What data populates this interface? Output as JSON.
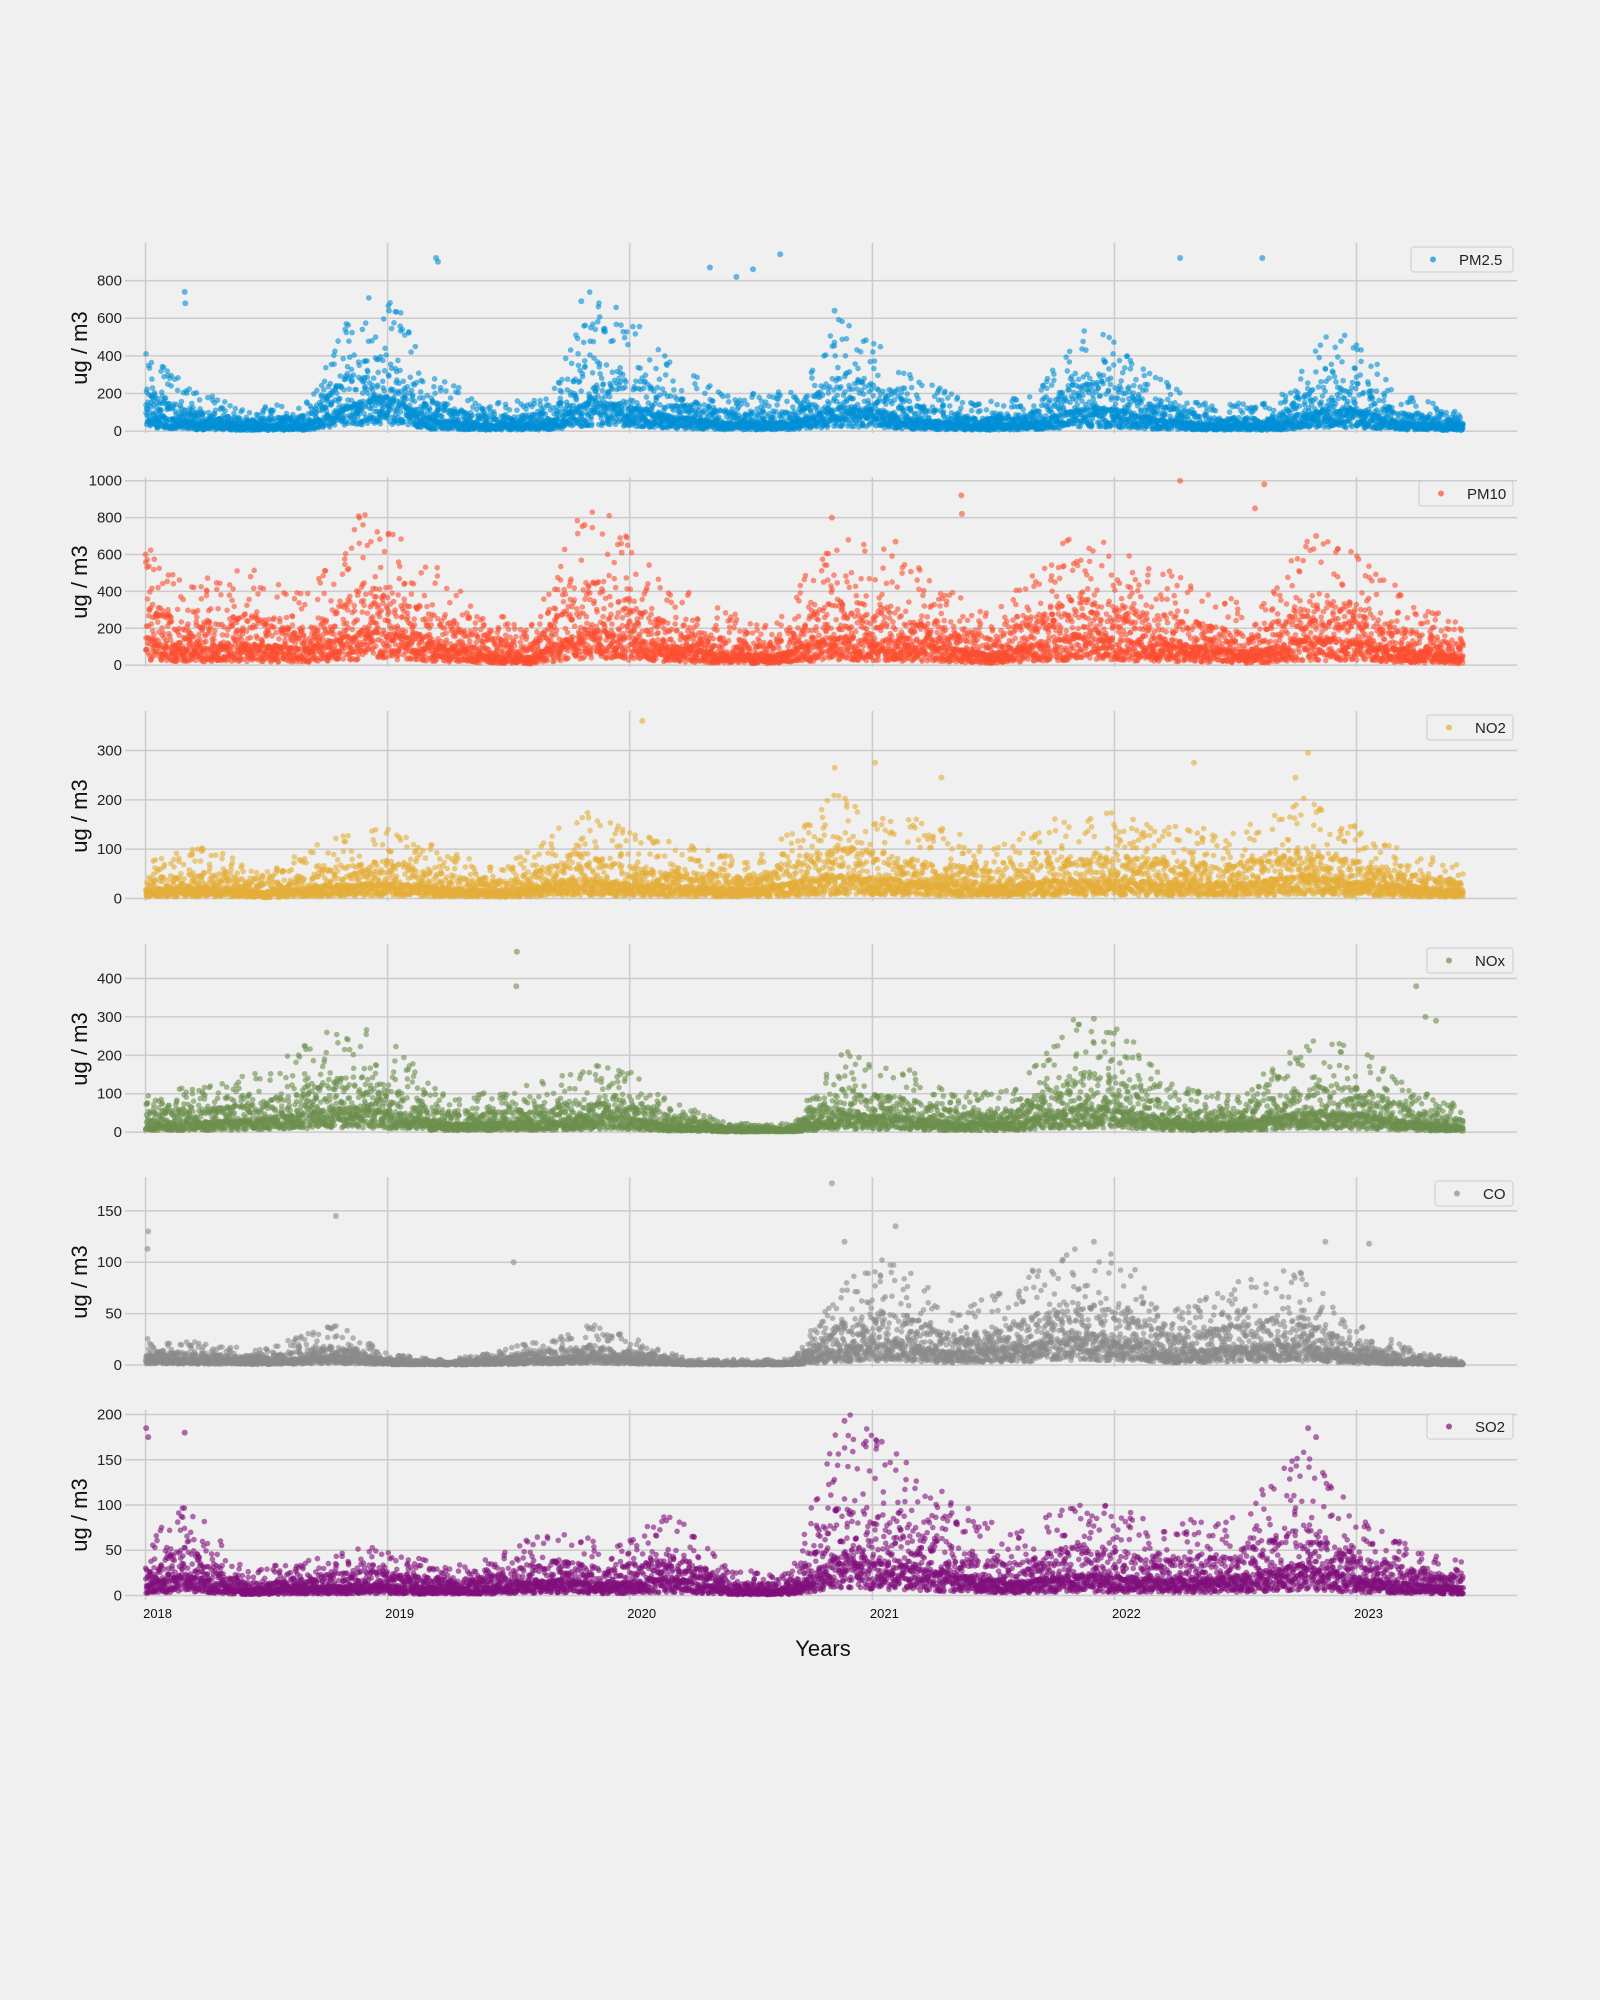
{
  "chart_data": {
    "type": "scatter",
    "xlabel": "Years",
    "xlim": [
      "2017-12-01",
      "2023-08-31"
    ],
    "xtick_labels": [
      "2018",
      "2019",
      "2020",
      "2021",
      "2022",
      "2023"
    ],
    "xtick_dates": [
      "2018-01-01",
      "2019-01-01",
      "2020-01-01",
      "2021-01-01",
      "2022-01-01",
      "2023-01-01"
    ],
    "grid": true,
    "legend_position": "top-right",
    "panels": [
      {
        "name": "PM2.5",
        "color": "#008fd5",
        "ylabel": "ug / m3",
        "ylim": [
          -10,
          1000
        ],
        "yticks": [
          0,
          200,
          400,
          600,
          800
        ],
        "approx_daily_series": {
          "dates": [
            "2018-01-01",
            "2018-03-01",
            "2018-06-01",
            "2018-09-01",
            "2018-11-15",
            "2019-01-01",
            "2019-03-01",
            "2019-06-01",
            "2019-09-01",
            "2019-11-01",
            "2020-01-01",
            "2020-03-01",
            "2020-06-01",
            "2020-09-01",
            "2020-11-15",
            "2021-01-01",
            "2021-03-01",
            "2021-06-01",
            "2021-09-01",
            "2021-11-15",
            "2022-01-01",
            "2022-03-01",
            "2022-06-01",
            "2022-09-01",
            "2022-11-15",
            "2023-01-01",
            "2023-03-01",
            "2023-06-10"
          ],
          "values": [
            180,
            90,
            45,
            60,
            260,
            320,
            120,
            55,
            70,
            280,
            230,
            140,
            70,
            80,
            230,
            200,
            110,
            55,
            70,
            220,
            200,
            110,
            55,
            55,
            200,
            190,
            80,
            35
          ]
        },
        "notable_points": [
          {
            "x": "2018-03-01",
            "y": 740
          },
          {
            "x": "2018-03-02",
            "y": 680
          },
          {
            "x": "2019-01-03",
            "y": 640
          },
          {
            "x": "2019-03-15",
            "y": 920
          },
          {
            "x": "2019-03-18",
            "y": 900
          },
          {
            "x": "2019-10-20",
            "y": 690
          },
          {
            "x": "2020-05-01",
            "y": 870
          },
          {
            "x": "2020-06-10",
            "y": 820
          },
          {
            "x": "2020-07-05",
            "y": 860
          },
          {
            "x": "2020-08-15",
            "y": 940
          },
          {
            "x": "2020-11-05",
            "y": 640
          },
          {
            "x": "2022-04-10",
            "y": 920
          },
          {
            "x": "2022-08-12",
            "y": 920
          }
        ]
      },
      {
        "name": "PM10",
        "color": "#fc4f30",
        "ylabel": "ug / m3",
        "ylim": [
          -10,
          1020
        ],
        "yticks": [
          0,
          200,
          400,
          600,
          800,
          1000
        ],
        "approx_daily_series": {
          "dates": [
            "2018-01-01",
            "2018-03-01",
            "2018-06-01",
            "2018-09-01",
            "2018-12-01",
            "2019-02-01",
            "2019-05-01",
            "2019-08-01",
            "2019-11-01",
            "2020-02-01",
            "2020-05-01",
            "2020-08-01",
            "2020-11-01",
            "2021-01-15",
            "2021-04-01",
            "2021-07-01",
            "2021-09-15",
            "2021-12-01",
            "2022-02-01",
            "2022-05-01",
            "2022-08-01",
            "2022-10-15",
            "2022-12-15",
            "2023-03-01",
            "2023-06-10"
          ],
          "values": [
            260,
            160,
            200,
            150,
            330,
            260,
            140,
            70,
            350,
            200,
            120,
            80,
            260,
            240,
            180,
            100,
            210,
            320,
            210,
            180,
            110,
            260,
            240,
            160,
            80
          ]
        },
        "notable_points": [
          {
            "x": "2018-01-01",
            "y": 600
          },
          {
            "x": "2019-10-25",
            "y": 760
          },
          {
            "x": "2019-12-20",
            "y": 610
          },
          {
            "x": "2020-11-01",
            "y": 800
          },
          {
            "x": "2021-02-05",
            "y": 670
          },
          {
            "x": "2021-05-15",
            "y": 920
          },
          {
            "x": "2021-05-16",
            "y": 820
          },
          {
            "x": "2022-04-10",
            "y": 1000
          },
          {
            "x": "2022-08-15",
            "y": 980
          },
          {
            "x": "2022-08-01",
            "y": 850
          },
          {
            "x": "2022-11-01",
            "y": 700
          }
        ]
      },
      {
        "name": "NO2",
        "color": "#e5ae38",
        "ylabel": "ug / m3",
        "ylim": [
          -5,
          380
        ],
        "yticks": [
          0,
          100,
          200,
          300
        ],
        "approx_daily_series": {
          "dates": [
            "2018-01-01",
            "2018-04-01",
            "2018-07-01",
            "2018-10-01",
            "2019-01-01",
            "2019-04-01",
            "2019-07-01",
            "2019-10-15",
            "2020-01-01",
            "2020-04-01",
            "2020-07-01",
            "2020-11-01",
            "2021-01-15",
            "2021-04-01",
            "2021-07-01",
            "2021-10-01",
            "2022-01-01",
            "2022-04-01",
            "2022-07-01",
            "2022-10-15",
            "2023-01-15",
            "2023-04-01",
            "2023-06-10"
          ],
          "values": [
            30,
            40,
            20,
            45,
            55,
            35,
            25,
            70,
            50,
            40,
            30,
            80,
            70,
            55,
            40,
            60,
            65,
            55,
            50,
            80,
            50,
            35,
            25
          ]
        },
        "notable_points": [
          {
            "x": "2020-01-20",
            "y": 360
          },
          {
            "x": "2020-11-05",
            "y": 265
          },
          {
            "x": "2021-01-05",
            "y": 275
          },
          {
            "x": "2021-04-15",
            "y": 245
          },
          {
            "x": "2022-05-01",
            "y": 275
          },
          {
            "x": "2022-10-20",
            "y": 295
          },
          {
            "x": "2022-10-01",
            "y": 245
          }
        ]
      },
      {
        "name": "NOx",
        "color": "#6d904f",
        "ylabel": "ug / m3",
        "ylim": [
          -5,
          490
        ],
        "yticks": [
          0,
          100,
          200,
          300,
          400
        ],
        "approx_daily_series": {
          "dates": [
            "2018-01-01",
            "2018-04-01",
            "2018-07-01",
            "2018-11-01",
            "2019-01-01",
            "2019-04-01",
            "2019-07-01",
            "2019-10-15",
            "2019-12-15",
            "2020-03-01",
            "2020-06-01",
            "2020-09-01",
            "2020-11-15",
            "2021-02-01",
            "2021-05-01",
            "2021-08-01",
            "2021-11-15",
            "2022-01-15",
            "2022-04-01",
            "2022-07-01",
            "2022-10-15",
            "2023-01-01",
            "2023-04-01",
            "2023-06-10"
          ],
          "values": [
            40,
            45,
            60,
            110,
            90,
            35,
            40,
            60,
            70,
            30,
            8,
            10,
            80,
            70,
            40,
            40,
            120,
            100,
            45,
            35,
            90,
            85,
            40,
            25
          ]
        },
        "notable_points": [
          {
            "x": "2019-07-15",
            "y": 470
          },
          {
            "x": "2019-07-14",
            "y": 380
          },
          {
            "x": "2023-04-01",
            "y": 380
          },
          {
            "x": "2023-04-15",
            "y": 300
          },
          {
            "x": "2023-05-01",
            "y": 290
          },
          {
            "x": "2021-12-01",
            "y": 295
          }
        ]
      },
      {
        "name": "CO",
        "color": "#8b8b8b",
        "ylabel": "ug / m3",
        "ylim": [
          -2,
          183
        ],
        "yticks": [
          0,
          50,
          100,
          150
        ],
        "approx_daily_series": {
          "dates": [
            "2018-01-01",
            "2018-04-01",
            "2018-07-01",
            "2018-10-15",
            "2019-01-01",
            "2019-04-01",
            "2019-07-01",
            "2019-11-01",
            "2020-01-01",
            "2020-04-01",
            "2020-09-01",
            "2020-11-15",
            "2021-02-01",
            "2021-05-01",
            "2021-08-01",
            "2021-11-01",
            "2022-01-15",
            "2022-04-01",
            "2022-07-01",
            "2022-10-01",
            "2023-01-01",
            "2023-04-01",
            "2023-06-10"
          ],
          "values": [
            10,
            8,
            6,
            15,
            4,
            2,
            6,
            15,
            10,
            2,
            2,
            30,
            40,
            20,
            30,
            45,
            40,
            20,
            30,
            35,
            15,
            5,
            2
          ]
        },
        "notable_points": [
          {
            "x": "2018-01-05",
            "y": 130
          },
          {
            "x": "2018-01-04",
            "y": 113
          },
          {
            "x": "2018-10-15",
            "y": 145
          },
          {
            "x": "2019-07-10",
            "y": 100
          },
          {
            "x": "2020-11-01",
            "y": 177
          },
          {
            "x": "2020-11-20",
            "y": 120
          },
          {
            "x": "2021-02-05",
            "y": 135
          },
          {
            "x": "2021-12-01",
            "y": 120
          },
          {
            "x": "2022-11-15",
            "y": 120
          },
          {
            "x": "2023-01-20",
            "y": 118
          }
        ]
      },
      {
        "name": "SO2",
        "color": "#810f7c",
        "ylabel": "ug / m3",
        "ylim": [
          -5,
          205
        ],
        "yticks": [
          0,
          50,
          100,
          150,
          200
        ],
        "approx_daily_series": {
          "dates": [
            "2018-01-01",
            "2018-03-01",
            "2018-06-01",
            "2018-09-01",
            "2018-12-01",
            "2019-03-01",
            "2019-06-01",
            "2019-09-15",
            "2019-12-01",
            "2020-03-01",
            "2020-06-01",
            "2020-09-01",
            "2020-11-15",
            "2021-02-01",
            "2021-05-01",
            "2021-08-01",
            "2021-11-01",
            "2022-01-15",
            "2022-04-01",
            "2022-07-01",
            "2022-10-15",
            "2023-01-15",
            "2023-04-01",
            "2023-06-10"
          ],
          "values": [
            20,
            40,
            10,
            15,
            20,
            15,
            15,
            30,
            20,
            35,
            10,
            10,
            80,
            60,
            40,
            25,
            40,
            35,
            30,
            35,
            60,
            30,
            20,
            15
          ]
        },
        "notable_points": [
          {
            "x": "2018-01-02",
            "y": 185
          },
          {
            "x": "2018-01-05",
            "y": 175
          },
          {
            "x": "2018-03-01",
            "y": 180
          },
          {
            "x": "2020-11-20",
            "y": 193
          },
          {
            "x": "2021-01-15",
            "y": 170
          },
          {
            "x": "2022-10-20",
            "y": 185
          },
          {
            "x": "2022-11-01",
            "y": 175
          }
        ]
      }
    ]
  }
}
